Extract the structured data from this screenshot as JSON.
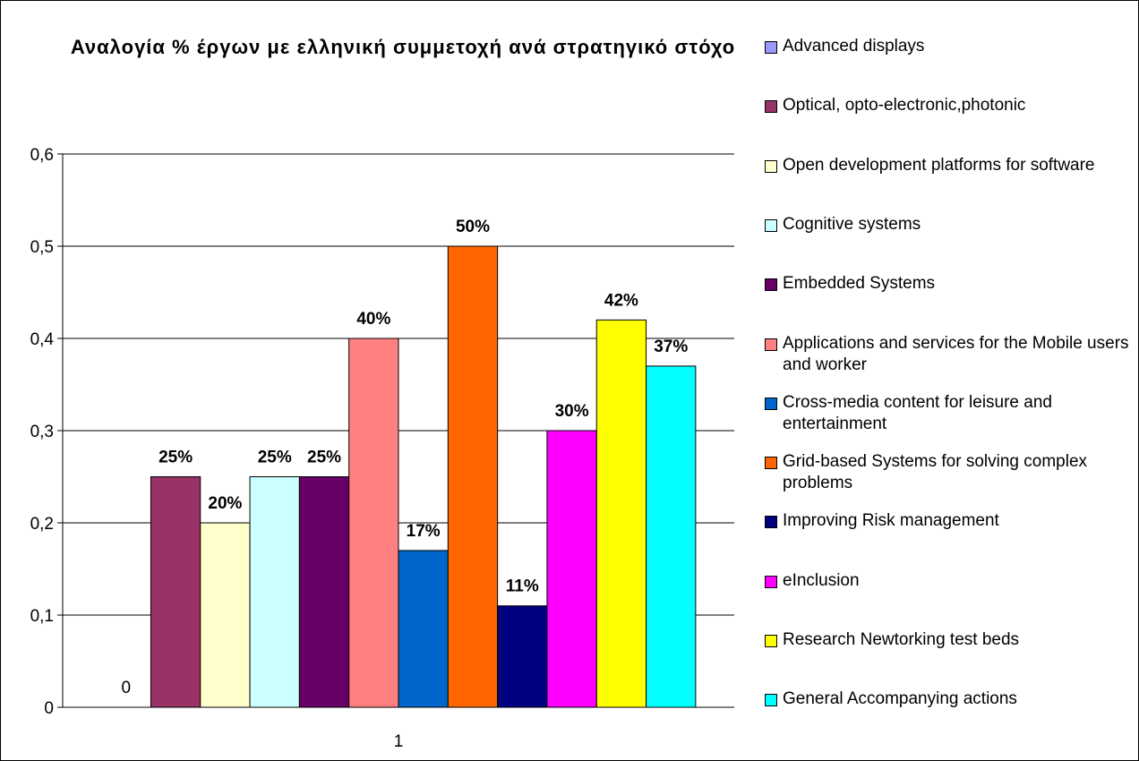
{
  "chart_data": {
    "type": "bar",
    "title": "Αναλογία % έργων με ελληνική συμμετοχή ανά στρατηγικό στόχο",
    "categories": [
      "1"
    ],
    "series": [
      {
        "name": "Advanced displays",
        "color": "#9999ff",
        "values": [
          0
        ],
        "value_labels": [
          "0"
        ]
      },
      {
        "name": "Optical, opto-electronic,photonic",
        "color": "#993366",
        "values": [
          0.25
        ],
        "value_labels": [
          "25%"
        ]
      },
      {
        "name": "Open development platforms for software",
        "color": "#ffffcc",
        "values": [
          0.2
        ],
        "value_labels": [
          "20%"
        ]
      },
      {
        "name": "Cognitive systems",
        "color": "#ccffff",
        "values": [
          0.25
        ],
        "value_labels": [
          "25%"
        ]
      },
      {
        "name": "Embedded Systems",
        "color": "#660066",
        "values": [
          0.25
        ],
        "value_labels": [
          "25%"
        ]
      },
      {
        "name": "Applications and services for the Mobile users and worker",
        "color": "#ff8080",
        "values": [
          0.4
        ],
        "value_labels": [
          "40%"
        ]
      },
      {
        "name": "Cross-media content for leisure and entertainment",
        "color": "#0066cc",
        "values": [
          0.17
        ],
        "value_labels": [
          "17%"
        ]
      },
      {
        "name": "Grid-based Systems for solving complex problems",
        "color": "#ff6600",
        "values": [
          0.5
        ],
        "value_labels": [
          "50%"
        ]
      },
      {
        "name": "Improving Risk management",
        "color": "#000080",
        "values": [
          0.11
        ],
        "value_labels": [
          "11%"
        ]
      },
      {
        "name": "eInclusion",
        "color": "#ff00ff",
        "values": [
          0.3
        ],
        "value_labels": [
          "30%"
        ]
      },
      {
        "name": "Research Newtorking test beds",
        "color": "#ffff00",
        "values": [
          0.42
        ],
        "value_labels": [
          "42%"
        ]
      },
      {
        "name": "General Accompanying actions",
        "color": "#00ffff",
        "values": [
          0.37
        ],
        "value_labels": [
          "37%"
        ]
      }
    ],
    "ylim": [
      0,
      0.6
    ],
    "yticks": [
      0,
      {
        "value": 0.1,
        "label": "0,1"
      },
      {
        "value": 0.2,
        "label": "0,2"
      },
      {
        "value": 0.3,
        "label": "0,3"
      },
      {
        "value": 0.4,
        "label": "0,4"
      },
      {
        "value": 0.5,
        "label": "0,5"
      },
      {
        "value": 0.6,
        "label": "0,6"
      }
    ],
    "grid": true,
    "legend": "right"
  }
}
